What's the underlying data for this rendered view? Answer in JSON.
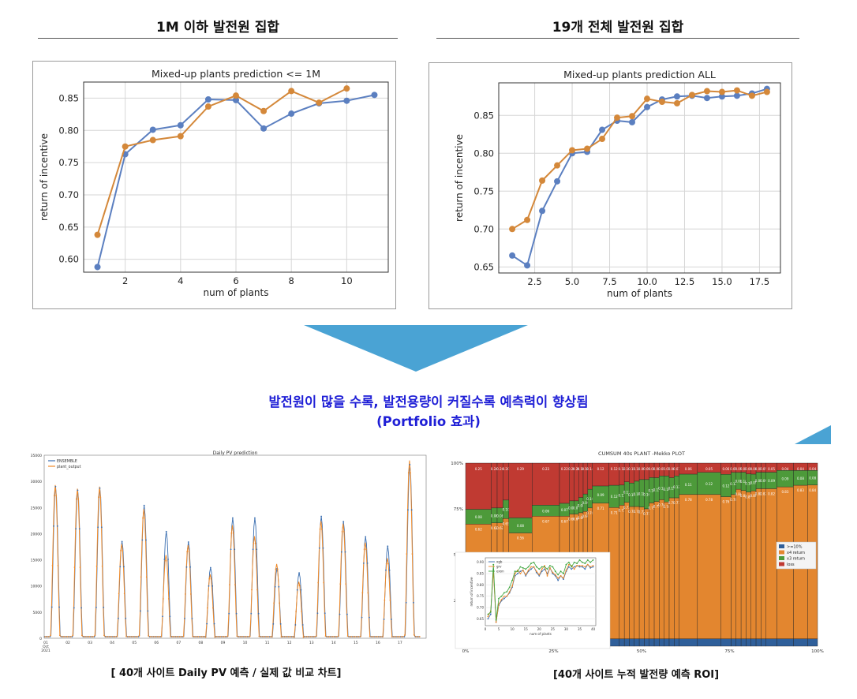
{
  "headings": {
    "left": "1M 이하 발전원 집합",
    "right": "19개 전체 발전원 집합"
  },
  "tagline": {
    "line1": "발전원이 많을 수록, 발전용량이 커질수록 예측력이 향상됨",
    "line2": "(Portfolio 효과)"
  },
  "captions": {
    "left": "[ 40개 사이트 Daily PV 예측 / 실제 값 비교 차트]",
    "right": "[40개 사이트 누적 발전량 예측 ROI]"
  },
  "colors": {
    "series_blue": "#5b7fc0",
    "series_orange": "#d4883a",
    "arrow": "#4aa3d4",
    "tagline": "#1f1fd6"
  },
  "chart_data": [
    {
      "type": "line",
      "title": "Mixed-up plants prediction <= 1M",
      "xlabel": "num of plants",
      "ylabel": "return of incentive",
      "xlim": [
        0.5,
        11.5
      ],
      "ylim": [
        0.58,
        0.875
      ],
      "xticks": [
        2,
        4,
        6,
        8,
        10
      ],
      "yticks": [
        0.6,
        0.65,
        0.7,
        0.75,
        0.8,
        0.85
      ],
      "grid": true,
      "series": [
        {
          "color": "#5b7fc0",
          "x": [
            1,
            2,
            3,
            4,
            5,
            6,
            7,
            8,
            9,
            10,
            11
          ],
          "y": [
            0.588,
            0.763,
            0.801,
            0.808,
            0.848,
            0.847,
            0.803,
            0.826,
            0.842,
            0.846,
            0.855
          ]
        },
        {
          "color": "#d4883a",
          "x": [
            1,
            2,
            3,
            4,
            5,
            6,
            7,
            8,
            9,
            10
          ],
          "y": [
            0.638,
            0.775,
            0.785,
            0.791,
            0.837,
            0.854,
            0.83,
            0.861,
            0.843,
            0.865
          ]
        }
      ]
    },
    {
      "type": "line",
      "title": "Mixed-up plants prediction ALL",
      "xlabel": "num of plants",
      "ylabel": "return of incentive",
      "xlim": [
        0.1,
        18.9
      ],
      "ylim": [
        0.642,
        0.893
      ],
      "xticks": [
        2.5,
        5.0,
        7.5,
        10.0,
        12.5,
        15.0,
        17.5
      ],
      "yticks": [
        0.65,
        0.7,
        0.75,
        0.8,
        0.85
      ],
      "grid": true,
      "series": [
        {
          "color": "#5b7fc0",
          "x": [
            1,
            2,
            3,
            4,
            5,
            6,
            7,
            8,
            9,
            10,
            11,
            12,
            13,
            14,
            15,
            16,
            17,
            18
          ],
          "y": [
            0.665,
            0.652,
            0.724,
            0.763,
            0.8,
            0.802,
            0.831,
            0.843,
            0.841,
            0.861,
            0.871,
            0.875,
            0.876,
            0.873,
            0.875,
            0.876,
            0.879,
            0.885
          ]
        },
        {
          "color": "#d4883a",
          "x": [
            1,
            2,
            3,
            4,
            5,
            6,
            7,
            8,
            9,
            10,
            11,
            12,
            13,
            14,
            15,
            16,
            17,
            18
          ],
          "y": [
            0.7,
            0.712,
            0.764,
            0.784,
            0.804,
            0.806,
            0.819,
            0.847,
            0.849,
            0.872,
            0.868,
            0.866,
            0.877,
            0.882,
            0.881,
            0.883,
            0.876,
            0.881
          ]
        }
      ]
    },
    {
      "type": "line",
      "title": "Daily PV prediction",
      "legend": [
        "ENSEMBLE",
        "plant_output"
      ],
      "ylim": [
        0,
        35000
      ],
      "yticks": [
        0,
        5000,
        10000,
        15000,
        20000,
        25000,
        30000,
        35000
      ],
      "xticks": [
        "01\nOct\n2021",
        "02",
        "03",
        "04",
        "05",
        "06",
        "07",
        "08",
        "09",
        "10",
        "11",
        "12",
        "13",
        "14",
        "15",
        "16",
        "17"
      ],
      "daily_peaks": {
        "ensemble": [
          29000,
          28300,
          28700,
          18500,
          25400,
          20400,
          18400,
          13500,
          23000,
          23000,
          13300,
          12500,
          23300,
          22300,
          19400,
          17600,
          33200
        ],
        "plant_output": [
          29300,
          28600,
          29000,
          18000,
          24700,
          15900,
          17800,
          12200,
          21600,
          19500,
          14200,
          10800,
          22400,
          21900,
          18300,
          15300,
          34000
        ]
      }
    },
    {
      "type": "bar",
      "title": "CUMSUM 40s PLANT -Mekko PLOT",
      "yticks": [
        "0%",
        "25%",
        "50%",
        "75%",
        "100%"
      ],
      "xticks": [
        "0%",
        "25%",
        "50%",
        "75%",
        "100%"
      ],
      "legend": [
        ">=10%",
        "x4 return",
        "x3 return",
        "loss"
      ],
      "legend_colors": [
        "#2f5f9a",
        "#e3862f",
        "#4d9a3a",
        "#c03a32"
      ],
      "columns": [
        {
          "w": 6.2,
          "blue": 0,
          "orange": 0.62,
          "green": 0.08,
          "red": 0.25
        },
        {
          "w": 1.4,
          "blue": 0,
          "orange": 0.62,
          "green": 0.08,
          "red": 0.24
        },
        {
          "w": 1.4,
          "blue": 0,
          "orange": 0.62,
          "green": 0.08,
          "red": 0.24
        },
        {
          "w": 1.4,
          "blue": 0,
          "orange": 0.65,
          "green": 0.1,
          "red": 0.2
        },
        {
          "w": 5.6,
          "blue": 0,
          "orange": 0.56,
          "green": 0.08,
          "red": 0.29
        },
        {
          "w": 6.6,
          "blue": 0,
          "orange": 0.67,
          "green": 0.06,
          "red": 0.23
        },
        {
          "w": 2.4,
          "blue": 0,
          "orange": 0.67,
          "green": 0.07,
          "red": 0.22
        },
        {
          "w": 1.1,
          "blue": 0,
          "orange": 0.66,
          "green": 0.07,
          "red": 0.2
        },
        {
          "w": 1.1,
          "blue": 0,
          "orange": 0.66,
          "green": 0.07,
          "red": 0.2
        },
        {
          "w": 1.1,
          "blue": 0,
          "orange": 0.66,
          "green": 0.08,
          "red": 0.18
        },
        {
          "w": 1.1,
          "blue": 0,
          "orange": 0.66,
          "green": 0.09,
          "red": 0.16
        },
        {
          "w": 1.1,
          "blue": 0,
          "orange": 0.7,
          "green": 0.1,
          "red": 0.14
        },
        {
          "w": 4.0,
          "blue": 0,
          "orange": 0.71,
          "green": 0.09,
          "red": 0.12
        },
        {
          "w": 2.5,
          "blue": 0,
          "orange": 0.71,
          "green": 0.12,
          "red": 0.12
        },
        {
          "w": 1.2,
          "blue": 0,
          "orange": 0.73,
          "green": 0.11,
          "red": 0.12
        },
        {
          "w": 1.2,
          "blue": 0,
          "orange": 0.73,
          "green": 0.11,
          "red": 0.1
        },
        {
          "w": 1.2,
          "blue": 0,
          "orange": 0.73,
          "green": 0.13,
          "red": 0.11
        },
        {
          "w": 1.2,
          "blue": 0,
          "orange": 0.73,
          "green": 0.14,
          "red": 0.1
        },
        {
          "w": 1.2,
          "blue": 0,
          "orange": 0.72,
          "green": 0.15,
          "red": 0.09
        },
        {
          "w": 1.2,
          "blue": 0,
          "orange": 0.71,
          "green": 0.16,
          "red": 0.09
        },
        {
          "w": 1.2,
          "blue": 0,
          "orange": 0.75,
          "green": 0.14,
          "red": 0.08
        },
        {
          "w": 1.2,
          "blue": 0,
          "orange": 0.75,
          "green": 0.13,
          "red": 0.08
        },
        {
          "w": 1.2,
          "blue": 0,
          "orange": 0.76,
          "green": 0.13,
          "red": 0.07
        },
        {
          "w": 1.2,
          "blue": 0,
          "orange": 0.74,
          "green": 0.14,
          "red": 0.07
        },
        {
          "w": 1.2,
          "blue": 0,
          "orange": 0.77,
          "green": 0.11,
          "red": 0.08
        },
        {
          "w": 1.2,
          "blue": 0,
          "orange": 0.77,
          "green": 0.12,
          "red": 0.07
        },
        {
          "w": 4.4,
          "blue": 0,
          "orange": 0.78,
          "green": 0.11,
          "red": 0.06
        },
        {
          "w": 5.6,
          "blue": 0,
          "orange": 0.78,
          "green": 0.12,
          "red": 0.05
        },
        {
          "w": 2.5,
          "blue": 0,
          "orange": 0.76,
          "green": 0.12,
          "red": 0.06
        },
        {
          "w": 1.2,
          "blue": 0,
          "orange": 0.78,
          "green": 0.12,
          "red": 0.05
        },
        {
          "w": 1.2,
          "blue": 0,
          "orange": 0.8,
          "green": 0.09,
          "red": 0.05
        },
        {
          "w": 1.2,
          "blue": 0,
          "orange": 0.81,
          "green": 0.1,
          "red": 0.05
        },
        {
          "w": 1.2,
          "blue": 0,
          "orange": 0.81,
          "green": 0.1,
          "red": 0.06
        },
        {
          "w": 1.2,
          "blue": 0,
          "orange": 0.8,
          "green": 0.09,
          "red": 0.06
        },
        {
          "w": 1.2,
          "blue": 0,
          "orange": 0.82,
          "green": 0.09,
          "red": 0.05
        },
        {
          "w": 1.2,
          "blue": 0,
          "orange": 0.82,
          "green": 0.09,
          "red": 0.05
        },
        {
          "w": 2.6,
          "blue": 0,
          "orange": 0.82,
          "green": 0.09,
          "red": 0.05
        },
        {
          "w": 4.0,
          "blue": 0,
          "orange": 0.83,
          "green": 0.09,
          "red": 0.04
        },
        {
          "w": 3.4,
          "blue": 0,
          "orange": 0.83,
          "green": 0.08,
          "red": 0.04
        },
        {
          "w": 2.4,
          "blue": 0,
          "orange": 0.84,
          "green": 0.08,
          "red": 0.04
        }
      ],
      "inset": {
        "type": "line",
        "legend": [
          "xgb",
          "grv",
          "exon"
        ],
        "ylabel": "return of incentive",
        "xlabel": "num of plants",
        "xticks": [
          0,
          5,
          10,
          15,
          20,
          25,
          30,
          35,
          40
        ],
        "yticks": [
          0.65,
          0.7,
          0.75,
          0.8,
          0.85,
          0.9
        ],
        "xlim": [
          0,
          41
        ],
        "ylim": [
          0.62,
          0.92
        ]
      }
    }
  ]
}
